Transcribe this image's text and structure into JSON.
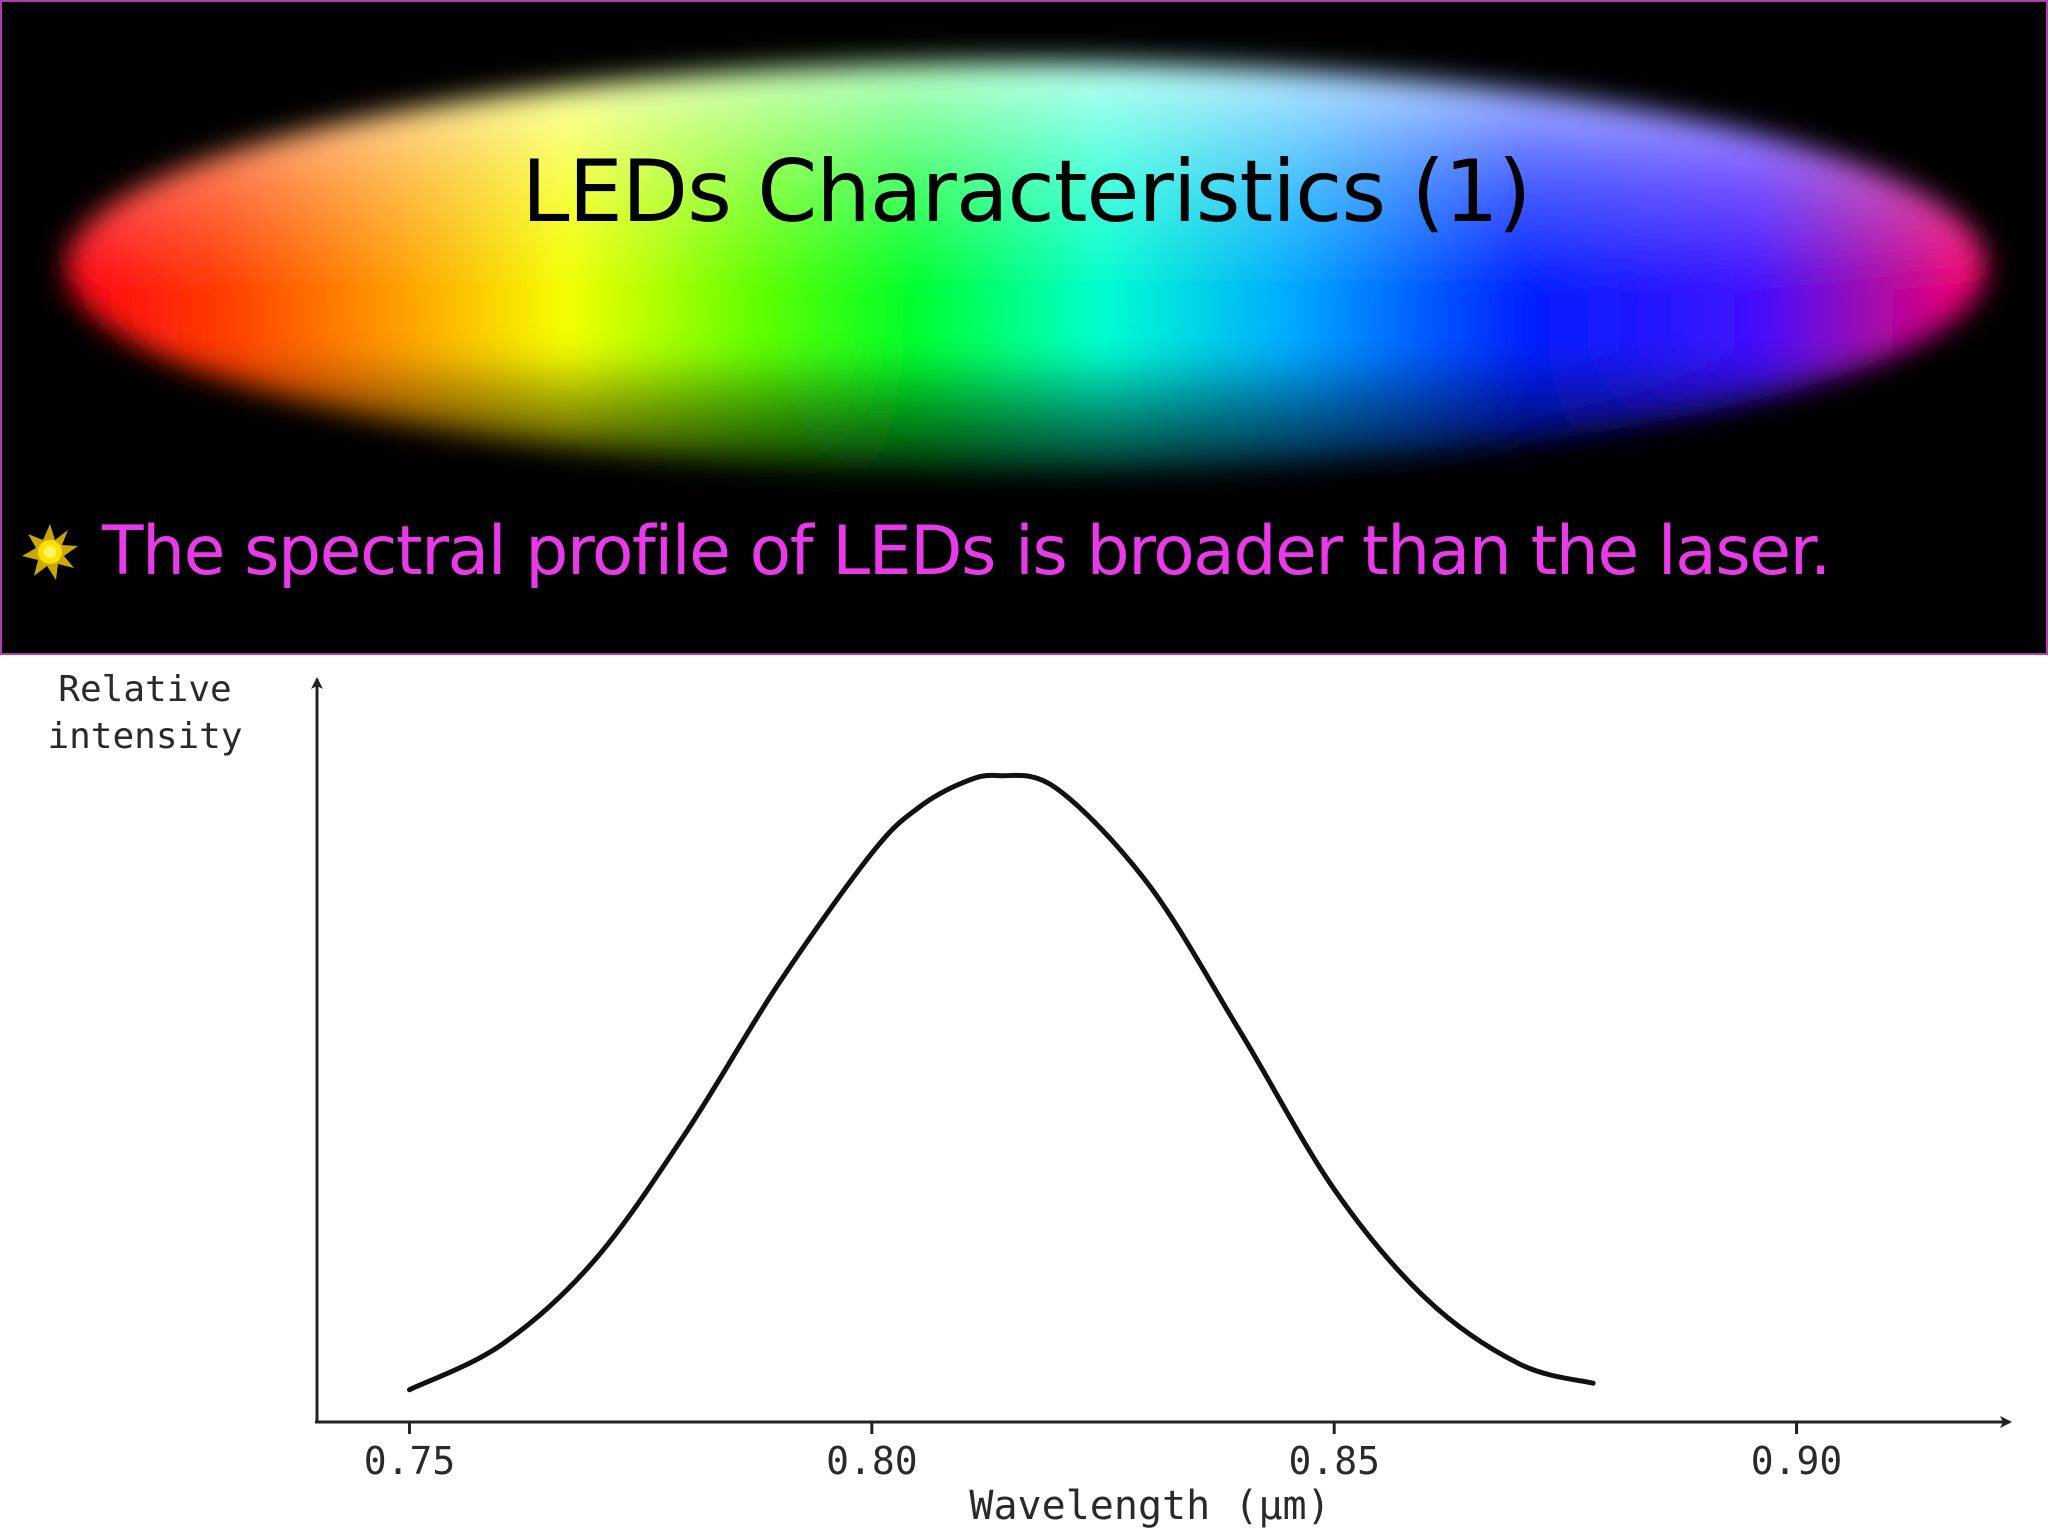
{
  "slide": {
    "title": "LEDs Characteristics (1)",
    "bullet": "The spectral profile of LEDs is broader than the laser.",
    "bullet_icon": "sun-burst-icon"
  },
  "colors": {
    "background_top": "#000000",
    "frame": "#b23bb2",
    "bullet_text": "#e83ae8",
    "title_text": "#000000",
    "curve": "#111111"
  },
  "chart_data": {
    "type": "line",
    "xlabel": "Wavelength (µm)",
    "ylabel": [
      "Relative",
      "intensity"
    ],
    "xticks": [
      0.75,
      0.8,
      0.85,
      0.9
    ],
    "xtick_labels": [
      "0.75",
      "0.80",
      "0.85",
      "0.90"
    ],
    "xlim": [
      0.74,
      0.922
    ],
    "ylim": [
      0,
      1.1
    ],
    "grid": false,
    "series": [
      {
        "x": [
          0.75,
          0.76,
          0.77,
          0.78,
          0.79,
          0.8,
          0.805,
          0.81,
          0.8137,
          0.82,
          0.83,
          0.84,
          0.85,
          0.86,
          0.87,
          0.878
        ],
        "y": [
          0.05,
          0.12,
          0.25,
          0.45,
          0.68,
          0.88,
          0.95,
          0.99,
          1.0,
          0.98,
          0.83,
          0.6,
          0.36,
          0.19,
          0.09,
          0.06
        ]
      }
    ]
  }
}
